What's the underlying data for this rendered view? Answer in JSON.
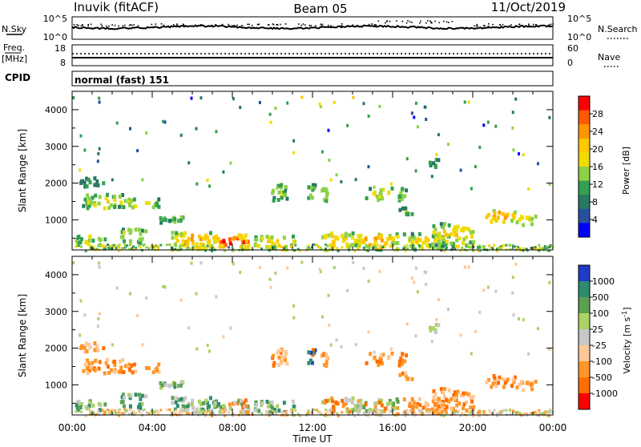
{
  "header": {
    "station": "Inuvik (fitACF)",
    "beam": "Beam 05",
    "date": "11/Oct/2019"
  },
  "noise_panel": {
    "left_label": "N.Sky",
    "left_ticks": [
      "10^5",
      "10^0"
    ],
    "right_label": "N.Search",
    "right_ticks": [
      "10^5",
      "10^0"
    ]
  },
  "freq_panel": {
    "left_label_1": "Freq.",
    "left_label_2": "[MHz]",
    "left_ticks": [
      "18",
      "8"
    ],
    "right_label": "Nave",
    "right_ticks": [
      "60",
      "0"
    ]
  },
  "cpid": {
    "label": "CPID",
    "value": "normal (fast) 151"
  },
  "chart_data": [
    {
      "type": "heatmap",
      "title": "",
      "ylabel": "Slant Range [km]",
      "ylim": [
        180,
        4500
      ],
      "xlim": [
        0,
        24
      ],
      "y_ticks": [
        "1000",
        "2000",
        "3000",
        "4000"
      ],
      "colorbar": {
        "label": "Power [dB]",
        "range": [
          0,
          32
        ],
        "ticks": [
          "28",
          "24",
          "20",
          "16",
          "12",
          "8",
          "4"
        ],
        "colors": [
          "#ff0000",
          "#ff5a00",
          "#ff9600",
          "#ffc800",
          "#f0dc00",
          "#8cd246",
          "#32a050",
          "#287864",
          "#2850a0",
          "#0000ff"
        ]
      }
    },
    {
      "type": "heatmap",
      "title": "",
      "ylabel": "Slant Range [km]",
      "xlabel": "Time UT",
      "ylim": [
        180,
        4500
      ],
      "xlim": [
        0,
        24
      ],
      "y_ticks": [
        "1000",
        "2000",
        "3000",
        "4000"
      ],
      "x_ticks": [
        "00:00",
        "04:00",
        "08:00",
        "12:00",
        "16:00",
        "20:00",
        "00:00"
      ],
      "colorbar": {
        "label": "Velocity [m s",
        "label_sup": "-1",
        "label_end": "]",
        "ticks": [
          "1000",
          "500",
          "100",
          "25",
          "-25",
          "-100",
          "-500",
          "-1000"
        ],
        "colors": [
          "#1e3cc8",
          "#2d8c6e",
          "#5aa050",
          "#aad264",
          "#c8c8c8",
          "#ffc896",
          "#ff9628",
          "#ff6e00",
          "#ff0000"
        ]
      }
    }
  ]
}
